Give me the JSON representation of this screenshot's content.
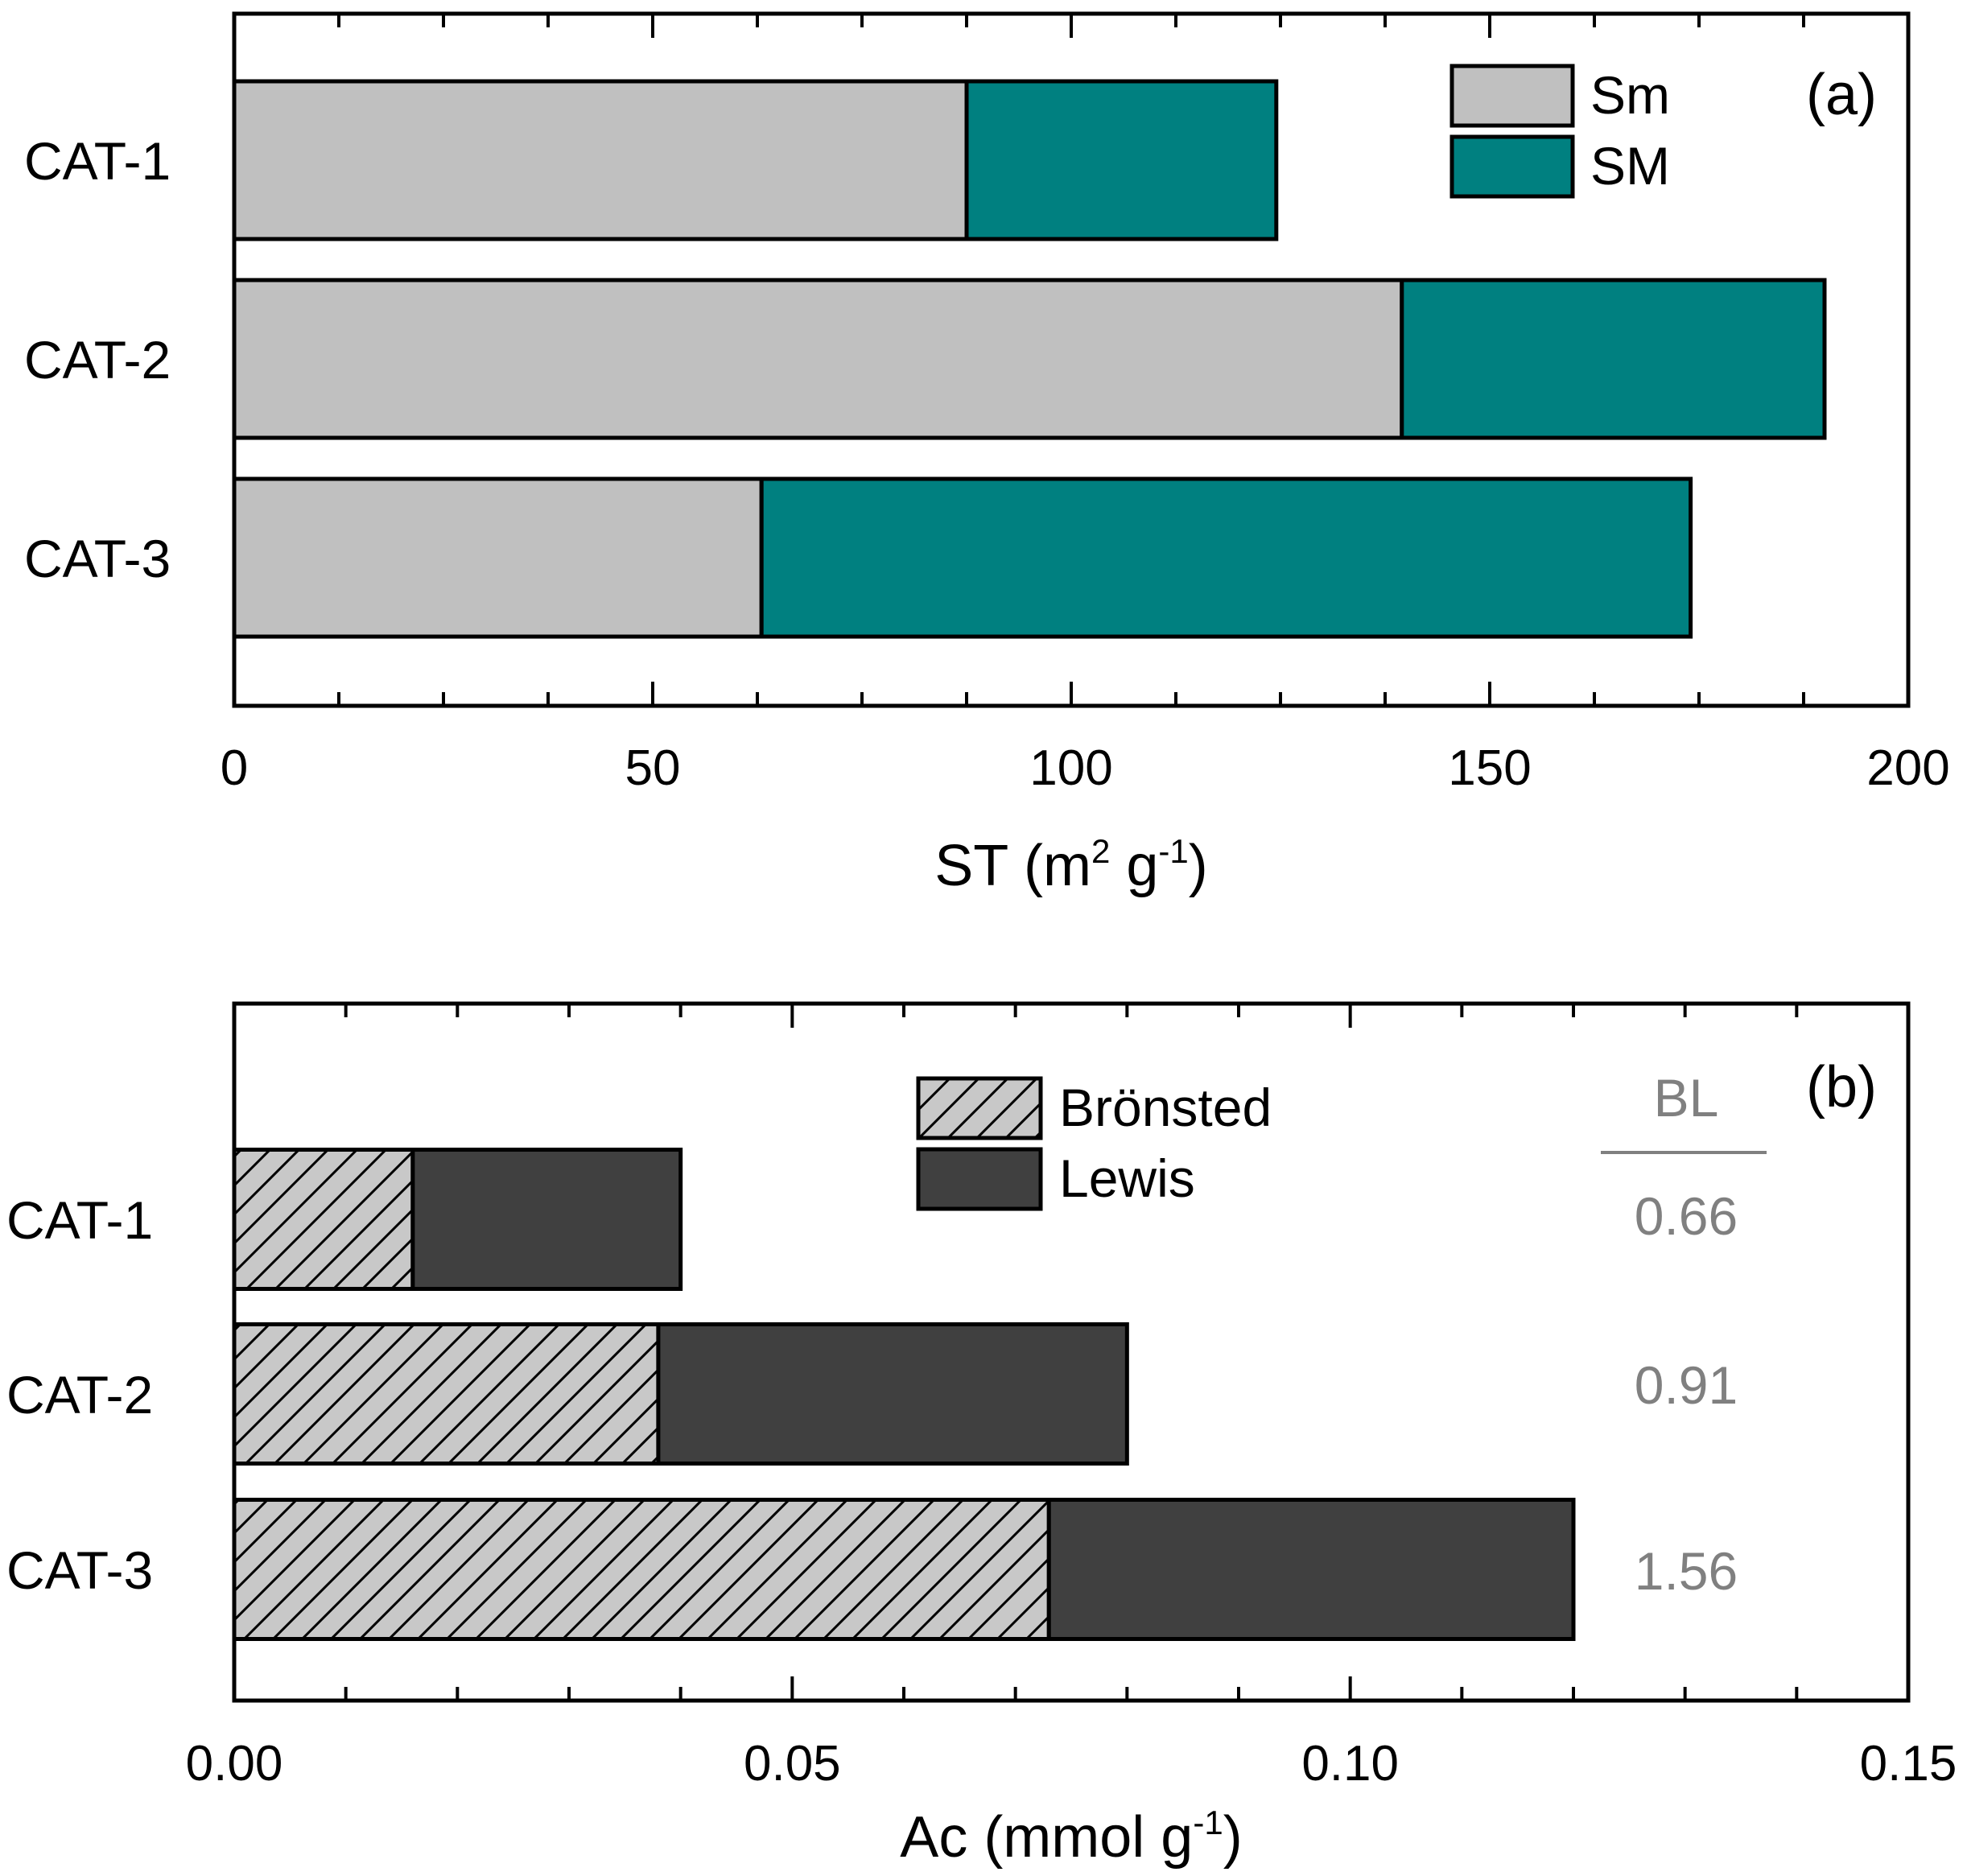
{
  "colors": {
    "sm": "#c0c0c0",
    "SM": "#008080",
    "bronsted": "#c8c8c8",
    "bronsted_hatch": "#000000",
    "lewis": "#404040",
    "bl_text": "#808080"
  },
  "chart_data": [
    {
      "type": "bar",
      "orientation": "horizontal",
      "stacked": true,
      "panel_label": "(a)",
      "categories": [
        "CAT-1",
        "CAT-2",
        "CAT-3"
      ],
      "series": [
        {
          "name": "Sm",
          "values": [
            87.5,
            139.5,
            63
          ]
        },
        {
          "name": "SM",
          "values": [
            37,
            50.5,
            111
          ]
        }
      ],
      "xlabel": {
        "main": "ST (m",
        "sup1": "2",
        "mid": " g",
        "sup2": "-1",
        "end": ")"
      },
      "xlim": [
        0,
        200
      ],
      "xticks": [
        0,
        50,
        100,
        150,
        200
      ],
      "xtick_labels": [
        "0",
        "50",
        "100",
        "150",
        "200"
      ],
      "legend_position": "top-right"
    },
    {
      "type": "bar",
      "orientation": "horizontal",
      "stacked": true,
      "panel_label": "(b)",
      "categories": [
        "CAT-1",
        "CAT-2",
        "CAT-3"
      ],
      "series": [
        {
          "name": "Brönsted",
          "values": [
            0.016,
            0.038,
            0.073
          ]
        },
        {
          "name": "Lewis",
          "values": [
            0.024,
            0.042,
            0.047
          ]
        }
      ],
      "xlabel": {
        "main": "Ac (mmol g",
        "sup1": "-1",
        "end": ")"
      },
      "xlim": [
        0,
        0.15
      ],
      "xticks": [
        0,
        0.05,
        0.1,
        0.15
      ],
      "xtick_labels": [
        "0.00",
        "0.05",
        "0.10",
        "0.15"
      ],
      "legend_position": "top-center",
      "annotation_header": "BL",
      "annotations": [
        "0.66",
        "0.91",
        "1.56"
      ]
    }
  ]
}
